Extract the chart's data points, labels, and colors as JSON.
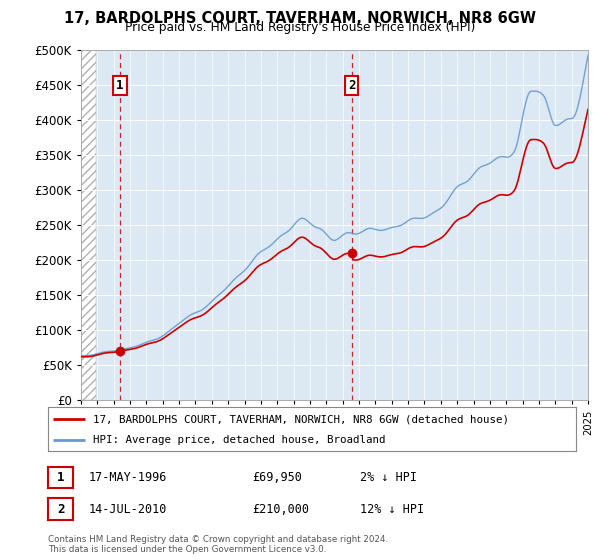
{
  "title": "17, BARDOLPHS COURT, TAVERHAM, NORWICH, NR8 6GW",
  "subtitle": "Price paid vs. HM Land Registry's House Price Index (HPI)",
  "legend_line1": "17, BARDOLPHS COURT, TAVERHAM, NORWICH, NR8 6GW (detached house)",
  "legend_line2": "HPI: Average price, detached house, Broadland",
  "annotation1_label": "1",
  "annotation1_date": "17-MAY-1996",
  "annotation1_price": "£69,950",
  "annotation1_hpi": "2% ↓ HPI",
  "annotation2_label": "2",
  "annotation2_date": "14-JUL-2010",
  "annotation2_price": "£210,000",
  "annotation2_hpi": "12% ↓ HPI",
  "footer": "Contains HM Land Registry data © Crown copyright and database right 2024.\nThis data is licensed under the Open Government Licence v3.0.",
  "hpi_color": "#6699cc",
  "price_color": "#cc0000",
  "annotation_color": "#cc0000",
  "background_plot": "#dce9f5",
  "ylim": [
    0,
    500000
  ],
  "yticks": [
    0,
    50000,
    100000,
    150000,
    200000,
    250000,
    300000,
    350000,
    400000,
    450000,
    500000
  ],
  "sale1_x": 1996.38,
  "sale1_y": 69950,
  "sale2_x": 2010.54,
  "sale2_y": 210000,
  "xmin": 1994,
  "xmax": 2025
}
